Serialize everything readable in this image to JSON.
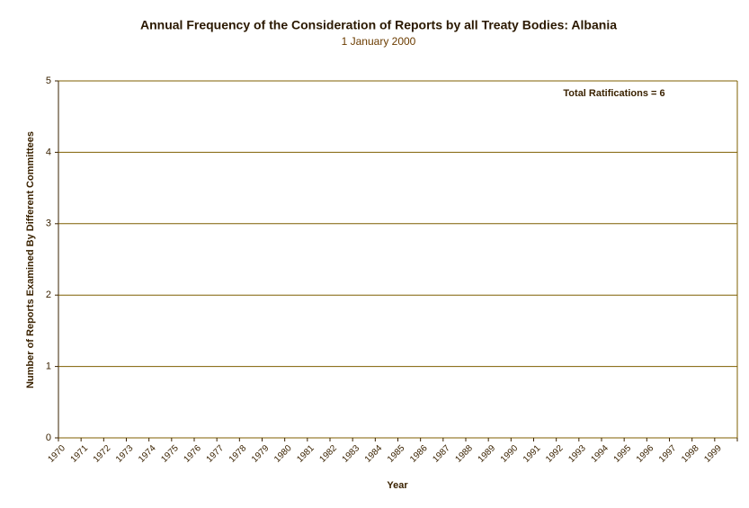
{
  "chart_data": {
    "type": "bar",
    "title": "Annual Frequency of the Consideration of Reports by all Treaty Bodies: Albania",
    "subtitle": "1 January 2000",
    "x_label": "Year",
    "y_label": "Number of Reports Examined By Different Committees",
    "annotation": "Total Ratifications = 6",
    "categories": [
      "1970",
      "1971",
      "1972",
      "1973",
      "1974",
      "1975",
      "1976",
      "1977",
      "1978",
      "1979",
      "1980",
      "1981",
      "1982",
      "1983",
      "1984",
      "1985",
      "1986",
      "1987",
      "1988",
      "1989",
      "1990",
      "1991",
      "1992",
      "1993",
      "1994",
      "1995",
      "1996",
      "1997",
      "1998",
      "1999"
    ],
    "values": [
      0,
      0,
      0,
      0,
      0,
      0,
      0,
      0,
      0,
      0,
      0,
      0,
      0,
      0,
      0,
      0,
      0,
      0,
      0,
      0,
      0,
      0,
      0,
      0,
      0,
      0,
      0,
      0,
      0,
      0
    ],
    "color": "#7f5f00",
    "ylim": [
      0,
      5
    ],
    "yticks": [
      0,
      1,
      2,
      3,
      4,
      5
    ],
    "grid": true
  }
}
